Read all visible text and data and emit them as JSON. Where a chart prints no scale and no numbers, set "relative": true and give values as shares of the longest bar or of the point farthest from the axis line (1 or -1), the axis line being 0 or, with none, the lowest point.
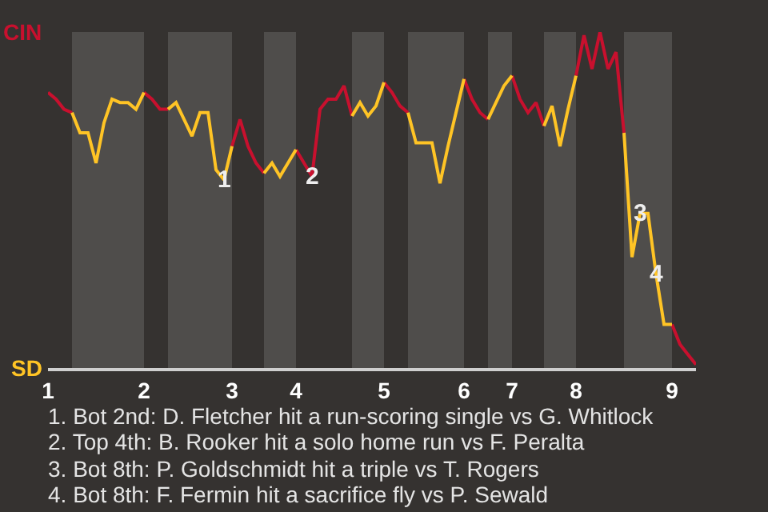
{
  "chart_data": {
    "type": "line",
    "relative": true,
    "categories": [
      "1",
      null,
      null,
      null,
      null,
      null,
      null,
      null,
      null,
      null,
      null,
      null,
      "2",
      null,
      null,
      null,
      null,
      null,
      null,
      null,
      null,
      null,
      null,
      "3",
      null,
      null,
      null,
      null,
      null,
      null,
      null,
      "4",
      null,
      null,
      null,
      null,
      null,
      null,
      null,
      null,
      null,
      null,
      "5",
      null,
      null,
      null,
      null,
      null,
      null,
      null,
      null,
      null,
      "6",
      null,
      null,
      null,
      null,
      null,
      "7",
      null,
      null,
      null,
      null,
      null,
      null,
      null,
      "8",
      null,
      null,
      null,
      null,
      null,
      null,
      null,
      null,
      null,
      null,
      null,
      "9",
      null,
      null,
      null
    ],
    "marker": "none",
    "line_style": "solid",
    "series": [
      {
        "color": "#c8102e",
        "values": [
          0.82,
          0.8,
          0.77,
          0.76,
          null,
          null,
          null,
          null,
          null,
          null,
          null,
          null,
          0.82,
          0.8,
          0.77,
          0.77,
          null,
          null,
          null,
          null,
          null,
          null,
          null,
          0.66,
          0.74,
          0.66,
          0.61,
          0.58,
          null,
          null,
          null,
          0.65,
          0.61,
          0.57,
          0.77,
          0.8,
          0.8,
          0.84,
          0.75,
          null,
          null,
          null,
          0.85,
          0.82,
          0.78,
          0.76,
          null,
          null,
          null,
          null,
          null,
          null,
          0.86,
          0.8,
          0.76,
          0.74,
          null,
          null,
          0.87,
          0.8,
          0.76,
          0.79,
          0.72,
          null,
          null,
          null,
          0.87,
          0.99,
          0.89,
          1,
          0.89,
          0.94,
          0.7,
          null,
          null,
          null,
          null,
          null,
          0.13,
          0.07,
          0.04,
          0.01
        ]
      },
      {
        "color": "#ffc425",
        "values": [
          null,
          null,
          null,
          0.76,
          0.7,
          0.7,
          0.61,
          0.73,
          0.8,
          0.79,
          0.79,
          0.77,
          0.82,
          null,
          null,
          0.77,
          0.79,
          0.74,
          0.69,
          0.76,
          0.76,
          0.59,
          0.56,
          0.66,
          null,
          null,
          null,
          0.58,
          0.61,
          0.57,
          0.61,
          0.65,
          null,
          null,
          null,
          null,
          null,
          null,
          0.75,
          0.79,
          0.75,
          0.78,
          0.85,
          null,
          null,
          0.76,
          0.67,
          0.67,
          0.67,
          0.55,
          0.66,
          0.76,
          0.86,
          null,
          null,
          0.74,
          0.79,
          0.84,
          0.87,
          null,
          null,
          null,
          0.72,
          0.78,
          0.66,
          0.77,
          0.87,
          null,
          null,
          null,
          null,
          null,
          0.7,
          0.33,
          0.46,
          0.46,
          0.28,
          0.13,
          0.13,
          null,
          null,
          null
        ]
      }
    ],
    "annotations": [
      {
        "text": "1",
        "y": 0.56
      },
      {
        "text": "2",
        "y": 0.57
      },
      {
        "text": "3",
        "y": 0.46
      },
      {
        "text": "4",
        "y": 0.28
      },
      "CIN",
      "SD",
      "1. Bot 2nd: D. Fletcher hit a run-scoring single vs G. Whitlock",
      "2. Top 4th: B. Rooker hit a solo home run vs F. Peralta",
      "3. Bot 8th: P. Goldschmidt hit a triple vs T. Rogers",
      "4. Bot 8th: F. Fermin hit a sacrifice fly vs P. Sewald"
    ]
  }
}
